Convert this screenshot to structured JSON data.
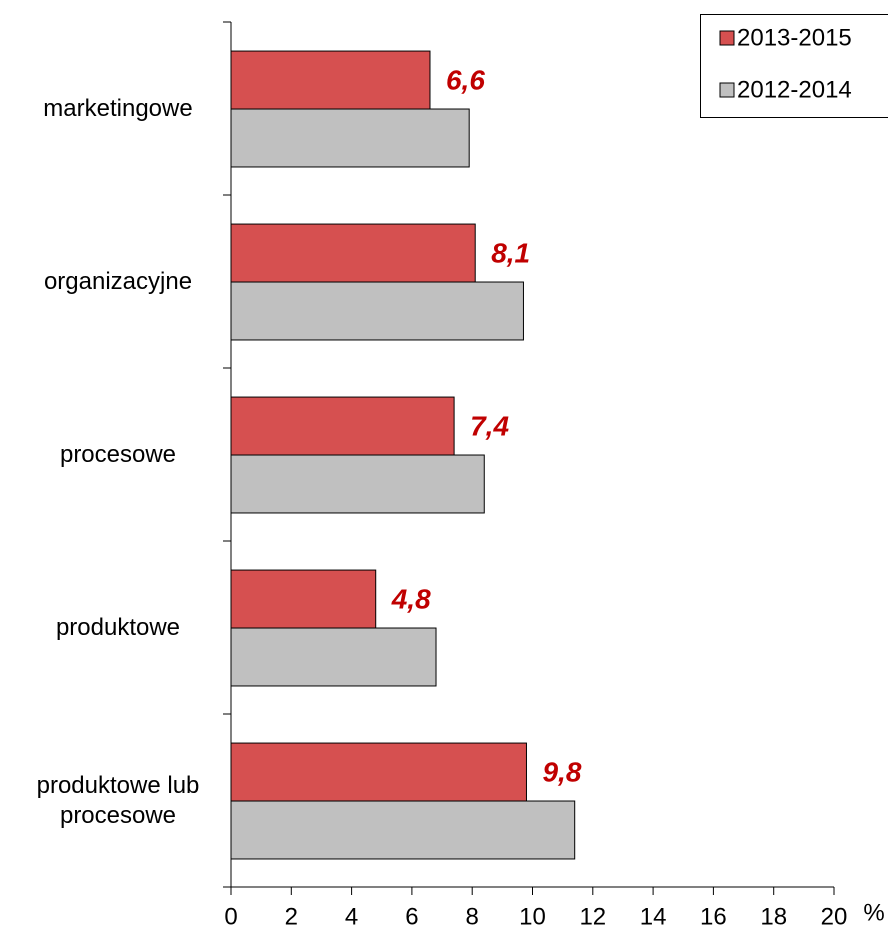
{
  "chart_data": {
    "type": "hbar",
    "categories": [
      "marketingowe",
      "organizacyjne",
      "procesowe",
      "produktowe",
      "produktowe lub\nprocesowe"
    ],
    "series": [
      {
        "name": "2013-2015",
        "color": "#d65050",
        "values": [
          6.6,
          8.1,
          7.4,
          4.8,
          9.8
        ],
        "value_labels": [
          "6,6",
          "8,1",
          "7,4",
          "4,8",
          "9,8"
        ]
      },
      {
        "name": "2012-2014",
        "color": "#c0c0c0",
        "values": [
          7.9,
          9.7,
          8.4,
          6.8,
          11.4
        ]
      }
    ],
    "xlim": [
      0,
      20
    ],
    "xticks": [
      0,
      2,
      4,
      6,
      8,
      10,
      12,
      14,
      16,
      18,
      20
    ],
    "x_label": "%",
    "legend": "top-right",
    "value_label_color": "#c00000"
  }
}
